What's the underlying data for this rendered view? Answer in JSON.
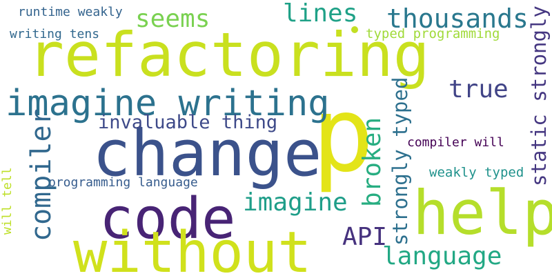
{
  "words": [
    {
      "id": "refactoring",
      "text": "refactoring",
      "color": "#c9e01f"
    },
    {
      "id": "p",
      "text": "p",
      "color": "#e3e418"
    },
    {
      "id": "change",
      "text": "change",
      "color": "#3b528b"
    },
    {
      "id": "code",
      "text": "code",
      "color": "#482475"
    },
    {
      "id": "help",
      "text": "help",
      "color": "#b5de2b"
    },
    {
      "id": "without",
      "text": "without",
      "color": "#d0e11c"
    },
    {
      "id": "imagine_writing",
      "text": "imagine writing",
      "color": "#2c728e"
    },
    {
      "id": "thousands",
      "text": "thousands",
      "color": "#2a788e"
    },
    {
      "id": "seems",
      "text": "seems",
      "color": "#7ad151"
    },
    {
      "id": "lines",
      "text": "lines",
      "color": "#1fa187"
    },
    {
      "id": "true",
      "text": "true",
      "color": "#414487"
    },
    {
      "id": "imagine",
      "text": "imagine",
      "color": "#1f9e89"
    },
    {
      "id": "api",
      "text": "API",
      "color": "#46327e"
    },
    {
      "id": "language",
      "text": "language",
      "color": "#22a884"
    },
    {
      "id": "invaluable_thing",
      "text": "invaluable thing",
      "color": "#3e4a89"
    },
    {
      "id": "runtime_weakly",
      "text": "runtime weakly",
      "color": "#33638d"
    },
    {
      "id": "writing_tens",
      "text": "writing tens",
      "color": "#31688e"
    },
    {
      "id": "typed_programming",
      "text": "typed programming",
      "color": "#a0da39"
    },
    {
      "id": "compiler_will",
      "text": "compiler will",
      "color": "#440154"
    },
    {
      "id": "weakly_typed",
      "text": "weakly typed",
      "color": "#20928c"
    },
    {
      "id": "programming_language",
      "text": "programming language",
      "color": "#365c8d"
    },
    {
      "id": "compiler",
      "text": "compiler",
      "color": "#31688e"
    },
    {
      "id": "broken",
      "text": "broken",
      "color": "#27ad81"
    },
    {
      "id": "strongly_typed",
      "text": "strongly typed",
      "color": "#2d708e"
    },
    {
      "id": "static_strongly",
      "text": "static strongly",
      "color": "#453781"
    },
    {
      "id": "will_tell",
      "text": "will tell",
      "color": "#bddf26"
    }
  ],
  "dot_color": "#c2df23"
}
